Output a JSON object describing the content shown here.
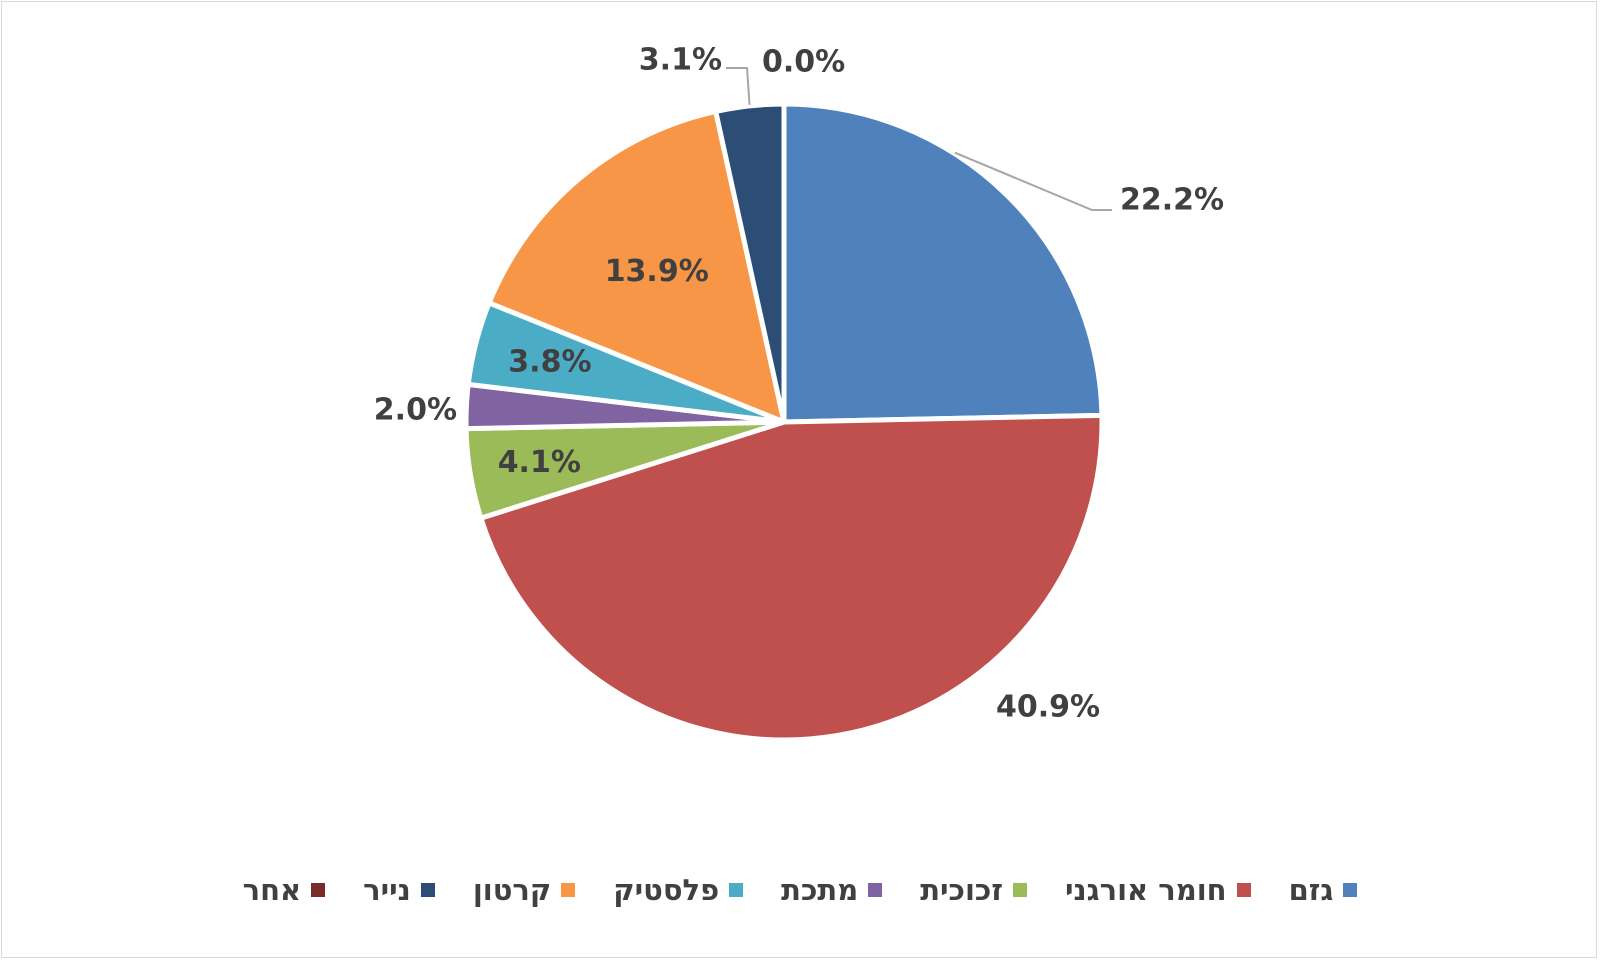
{
  "chart_data": {
    "type": "pie",
    "title": "",
    "start_angle_deg": 0,
    "direction": "clockwise",
    "legend_position": "bottom",
    "categories": [
      "גזם",
      "חומר אורגני",
      "זכוכית",
      "מתכת",
      "פלסטיק",
      "קרטון",
      "נייר",
      "אחר"
    ],
    "values": [
      22.2,
      40.9,
      4.1,
      2.0,
      3.8,
      13.9,
      3.1,
      0.0
    ],
    "labels": [
      "22.2%",
      "40.9%",
      "4.1%",
      "2.0%",
      "3.8%",
      "13.9%",
      "3.1%",
      "0.0%"
    ],
    "colors": [
      "#4f81bd",
      "#c0504d",
      "#9bbb59",
      "#8064a2",
      "#4bacc6",
      "#f79646",
      "#2c4d75",
      "#772c2a"
    ]
  }
}
